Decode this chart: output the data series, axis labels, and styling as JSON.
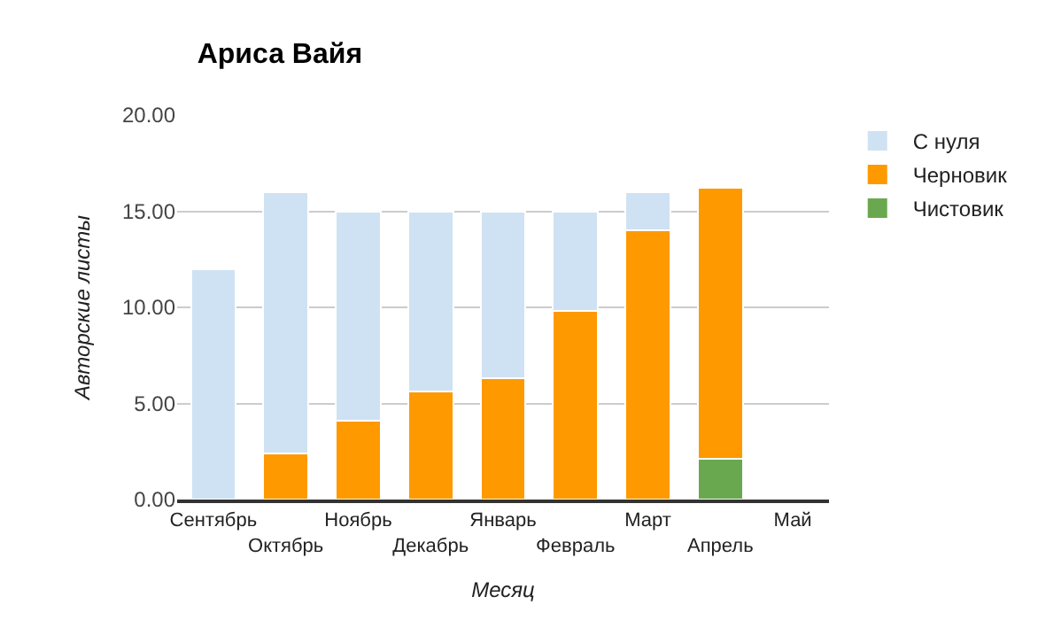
{
  "chart_data": {
    "type": "bar",
    "title": "Ариса Вайя",
    "xlabel": "Месяц",
    "ylabel": "Авторские листы",
    "categories": [
      "Сентябрь",
      "Октябрь",
      "Ноябрь",
      "Декабрь",
      "Январь",
      "Февраль",
      "Март",
      "Апрель",
      "Май"
    ],
    "stacked": true,
    "series": [
      {
        "name": "Чистовик",
        "color": "#6aa84f",
        "values": [
          null,
          null,
          null,
          null,
          null,
          null,
          null,
          2.1,
          null
        ]
      },
      {
        "name": "Черновик",
        "color": "#ff9900",
        "values": [
          null,
          2.4,
          4.1,
          5.6,
          6.3,
          9.8,
          14.0,
          14.1,
          null
        ]
      },
      {
        "name": "С нуля",
        "color": "#cfe2f3",
        "values": [
          12,
          13.6,
          10.9,
          9.4,
          8.7,
          5.2,
          2.0,
          null,
          null
        ]
      }
    ],
    "ylim": [
      0,
      20
    ],
    "yticks": [
      {
        "value": 0,
        "label": "0.00"
      },
      {
        "value": 5,
        "label": "5.00"
      },
      {
        "value": 10,
        "label": "10.00"
      },
      {
        "value": 15,
        "label": "15.00"
      },
      {
        "value": 20,
        "label": "20.00"
      }
    ],
    "grid": "y",
    "legend": "top right"
  }
}
